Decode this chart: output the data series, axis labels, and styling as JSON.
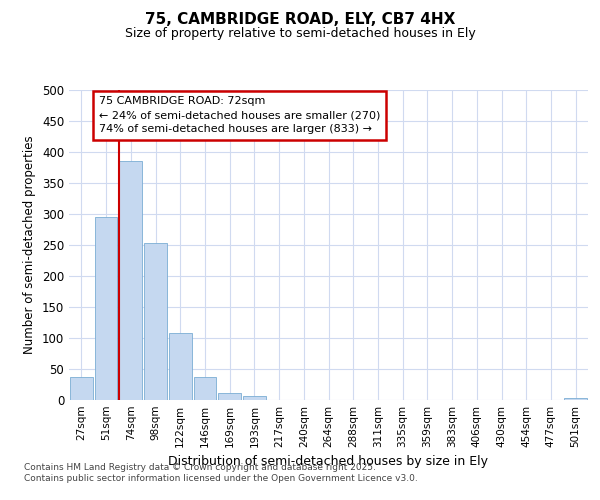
{
  "title1": "75, CAMBRIDGE ROAD, ELY, CB7 4HX",
  "title2": "Size of property relative to semi-detached houses in Ely",
  "xlabel": "Distribution of semi-detached houses by size in Ely",
  "ylabel": "Number of semi-detached properties",
  "categories": [
    "27sqm",
    "51sqm",
    "74sqm",
    "98sqm",
    "122sqm",
    "146sqm",
    "169sqm",
    "193sqm",
    "217sqm",
    "240sqm",
    "264sqm",
    "288sqm",
    "311sqm",
    "335sqm",
    "359sqm",
    "383sqm",
    "406sqm",
    "430sqm",
    "454sqm",
    "477sqm",
    "501sqm"
  ],
  "values": [
    37,
    295,
    385,
    254,
    108,
    37,
    11,
    7,
    0,
    0,
    0,
    0,
    0,
    0,
    0,
    0,
    0,
    0,
    0,
    0,
    3
  ],
  "bar_color": "#c5d8f0",
  "bar_edge_color": "#7badd4",
  "vline_x": 2,
  "vline_color": "#cc0000",
  "annotation_title": "75 CAMBRIDGE ROAD: 72sqm",
  "annotation_line1": "← 24% of semi-detached houses are smaller (270)",
  "annotation_line2": "74% of semi-detached houses are larger (833) →",
  "annotation_box_color": "#ffffff",
  "annotation_box_edge": "#cc0000",
  "ylim": [
    0,
    500
  ],
  "yticks": [
    0,
    50,
    100,
    150,
    200,
    250,
    300,
    350,
    400,
    450,
    500
  ],
  "footer1": "Contains HM Land Registry data © Crown copyright and database right 2025.",
  "footer2": "Contains public sector information licensed under the Open Government Licence v3.0.",
  "bg_color": "#ffffff",
  "plot_bg_color": "#ffffff",
  "grid_color": "#d0daf0"
}
